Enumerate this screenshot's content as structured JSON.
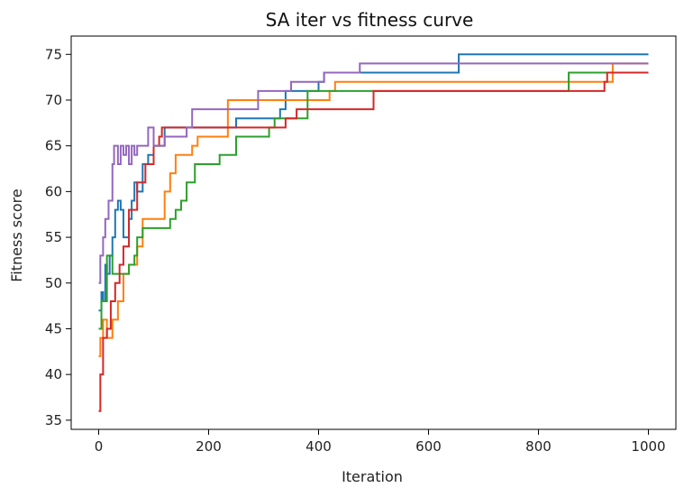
{
  "chart_data": {
    "type": "line",
    "title": "SA iter vs fitness curve",
    "xlabel": "Iteration",
    "ylabel": "Fitness score",
    "xlim": [
      -50,
      1050
    ],
    "ylim": [
      34,
      77
    ],
    "xticks": [
      0,
      200,
      400,
      600,
      800,
      1000
    ],
    "yticks": [
      35,
      40,
      45,
      50,
      55,
      60,
      65,
      70,
      75
    ],
    "grid": false,
    "series": [
      {
        "color": "#1f77b4",
        "x": [
          0,
          5,
          8,
          12,
          15,
          20,
          25,
          30,
          35,
          40,
          45,
          55,
          60,
          65,
          70,
          80,
          90,
          100,
          120,
          180,
          250,
          330,
          340,
          400,
          410,
          650,
          655,
          1000
        ],
        "y": [
          47,
          49,
          48,
          52,
          51,
          53,
          55,
          58,
          59,
          58,
          55,
          57,
          59,
          61,
          60,
          63,
          64,
          65,
          67,
          67,
          68,
          69,
          71,
          72,
          73,
          73,
          75,
          75
        ]
      },
      {
        "color": "#ff7f0e",
        "x": [
          0,
          3,
          8,
          15,
          25,
          35,
          45,
          55,
          70,
          80,
          90,
          120,
          130,
          140,
          170,
          180,
          230,
          235,
          300,
          310,
          420,
          430,
          600,
          930,
          935,
          1000
        ],
        "y": [
          42,
          44,
          46,
          44,
          46,
          48,
          51,
          52,
          54,
          57,
          57,
          60,
          62,
          64,
          65,
          66,
          66,
          70,
          70,
          70,
          71,
          72,
          72,
          72,
          74,
          74
        ]
      },
      {
        "color": "#2ca02c",
        "x": [
          0,
          5,
          15,
          25,
          40,
          55,
          65,
          70,
          80,
          110,
          130,
          140,
          150,
          160,
          175,
          200,
          220,
          250,
          300,
          310,
          320,
          370,
          380,
          500,
          850,
          855,
          1000
        ],
        "y": [
          45,
          48,
          53,
          51,
          51,
          52,
          53,
          55,
          56,
          56,
          57,
          58,
          59,
          61,
          63,
          63,
          64,
          66,
          66,
          67,
          68,
          68,
          71,
          71,
          71,
          73,
          73
        ]
      },
      {
        "color": "#d62728",
        "x": [
          0,
          3,
          8,
          15,
          22,
          30,
          38,
          45,
          55,
          70,
          85,
          100,
          110,
          115,
          135,
          170,
          240,
          300,
          340,
          360,
          400,
          490,
          500,
          700,
          920,
          925,
          1000
        ],
        "y": [
          36,
          40,
          44,
          45,
          48,
          50,
          52,
          54,
          58,
          61,
          63,
          65,
          66,
          67,
          67,
          67,
          67,
          67,
          68,
          69,
          69,
          69,
          71,
          71,
          72,
          73,
          73
        ]
      },
      {
        "color": "#9467bd",
        "x": [
          0,
          3,
          8,
          12,
          18,
          25,
          28,
          35,
          40,
          45,
          50,
          55,
          60,
          65,
          70,
          85,
          90,
          100,
          120,
          160,
          170,
          280,
          290,
          340,
          350,
          400,
          410,
          470,
          475,
          1000
        ],
        "y": [
          50,
          53,
          55,
          57,
          59,
          63,
          65,
          63,
          65,
          64,
          65,
          63,
          65,
          64,
          65,
          65,
          67,
          65,
          66,
          67,
          69,
          69,
          71,
          71,
          72,
          72,
          73,
          73,
          74,
          74
        ]
      }
    ]
  }
}
